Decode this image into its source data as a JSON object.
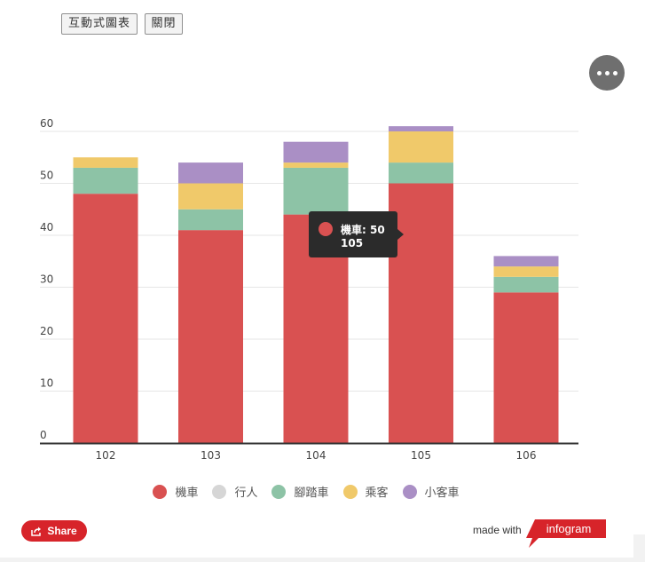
{
  "buttons": {
    "interactive_chart": "互動式圖表",
    "close": "關閉"
  },
  "chart_data": {
    "type": "bar",
    "stacked": true,
    "categories": [
      "102",
      "103",
      "104",
      "105",
      "106"
    ],
    "ylim": [
      0,
      60
    ],
    "yticks": [
      0,
      10,
      20,
      30,
      40,
      50,
      60
    ],
    "grid": true,
    "legend_position": "bottom",
    "series": [
      {
        "name": "機車",
        "color": "#d95151",
        "values": [
          48,
          41,
          44,
          50,
          29
        ]
      },
      {
        "name": "行人",
        "color": "#d6d6d6",
        "values": [
          0,
          0,
          0,
          0,
          0
        ]
      },
      {
        "name": "腳踏車",
        "color": "#8dc3a6",
        "values": [
          5,
          4,
          9,
          4,
          3
        ]
      },
      {
        "name": "乘客",
        "color": "#f0c96a",
        "values": [
          2,
          5,
          1,
          6,
          2
        ]
      },
      {
        "name": "小客車",
        "color": "#aa8fc5",
        "values": [
          0,
          4,
          4,
          1,
          2
        ]
      }
    ],
    "tooltip": {
      "series": "機車",
      "category": "105",
      "label": "機車: 50",
      "value_line": "105"
    }
  },
  "footer": {
    "share_label": "Share",
    "made_with": "made with",
    "brand": "infogram",
    "brand_color": "#d7242a"
  }
}
